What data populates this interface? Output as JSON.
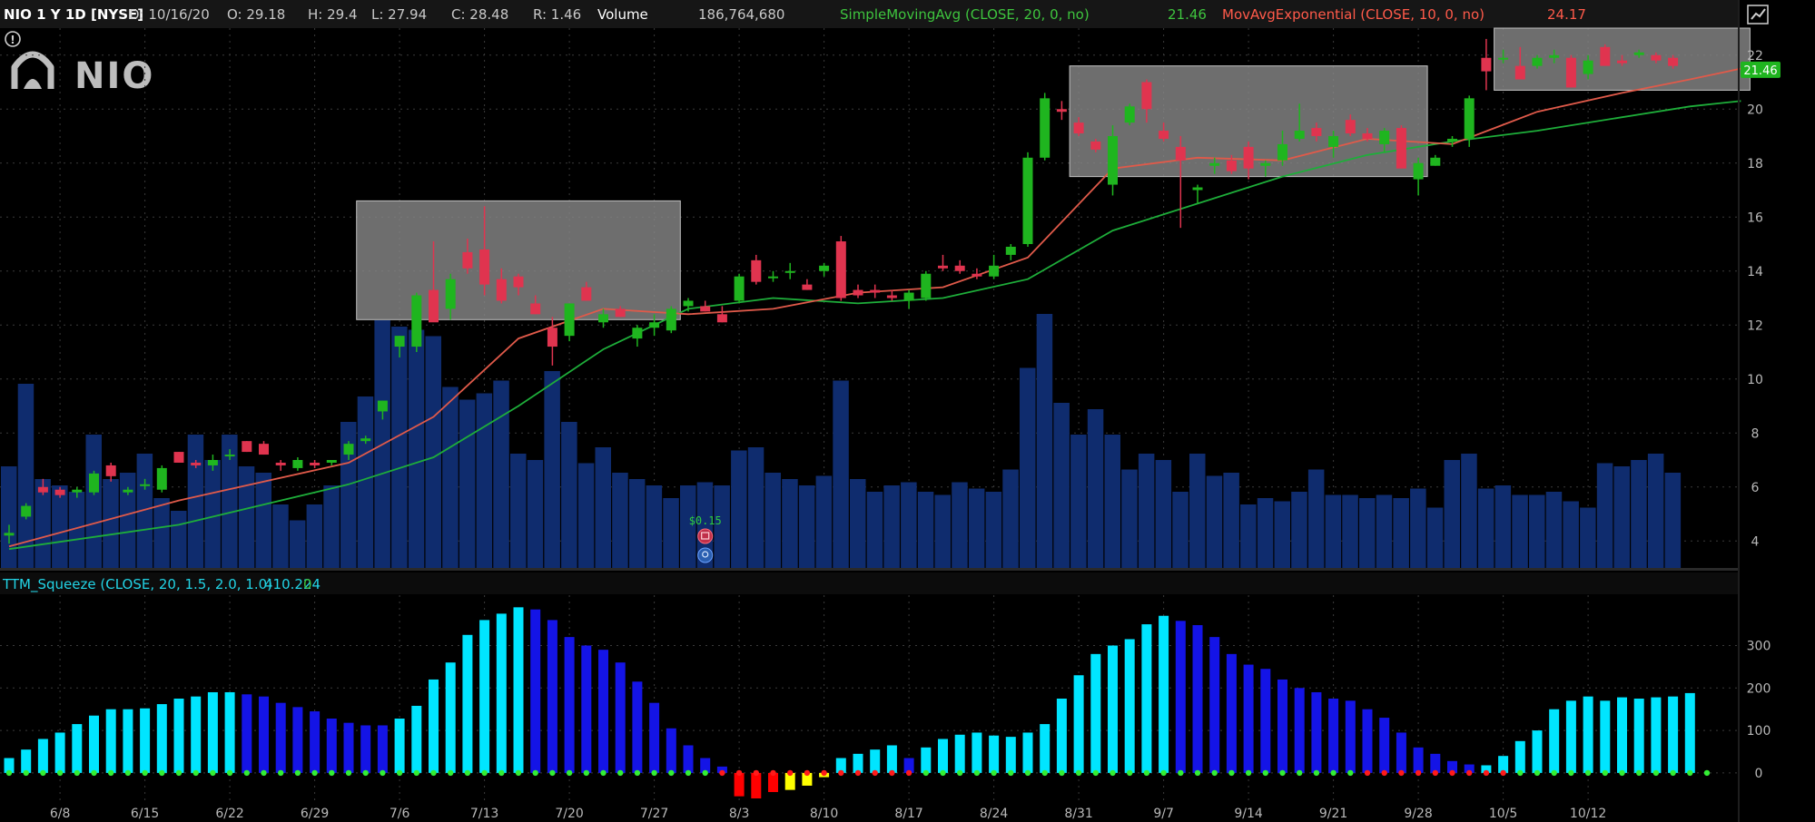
{
  "header": {
    "title": "NIO 1 Y 1D [NYSE]",
    "date": "D: 10/16/20",
    "open": "O: 29.18",
    "high": "H: 29.4",
    "low": "L: 27.94",
    "close": "C: 28.48",
    "range": "R: 1.46",
    "volume_label": "Volume",
    "volume_value": "186,764,680",
    "sma_label": "SimpleMovingAvg (CLOSE, 20, 0, no)",
    "sma_value": "21.46",
    "ema_label": "MovAvgExponential (CLOSE, 10, 0, no)",
    "ema_value": "24.17"
  },
  "logo": {
    "text": "NIO",
    "alert_glyph": "!"
  },
  "lower_header": {
    "label": "TTM_Squeeze (CLOSE, 20, 1.5, 2.0, 1.0)",
    "value": "410.224",
    "extra": "0"
  },
  "colors": {
    "up": "#1fb51f",
    "down": "#e0344f",
    "volume": "#0f2c6e",
    "sma": "#1eae3a",
    "ema": "#e05a4a",
    "box": "#8a8a8a",
    "squeeze_cyan": "#00e5ff",
    "squeeze_blue": "#1414e6",
    "squeeze_red": "#ff0000",
    "squeeze_yellow": "#ffff00",
    "header_sma": "#3ec43e",
    "header_ema": "#ff5a4a"
  },
  "events": {
    "dividend_label": "$0.15",
    "earnings_icon": "earnings-icon",
    "bulb_icon": "lightbulb-icon"
  },
  "chart_data": [
    {
      "type": "candlestick",
      "title": "NIO 1 Y 1D [NYSE]",
      "ylim": [
        3,
        23
      ],
      "yticks": [
        "4",
        "6",
        "8",
        "10",
        "12",
        "14",
        "16",
        "18",
        "20",
        "22"
      ],
      "x_ticks": [
        "6/8",
        "6/15",
        "6/22",
        "6/29",
        "7/6",
        "7/13",
        "7/20",
        "7/27",
        "8/3",
        "8/10",
        "8/17",
        "8/24",
        "8/31",
        "9/7",
        "9/14",
        "9/21",
        "9/28",
        "10/5",
        "10/12"
      ],
      "last_price_label": "21.46",
      "candles": [
        [
          4.2,
          4.6,
          3.9,
          4.3
        ],
        [
          4.9,
          5.4,
          4.8,
          5.3
        ],
        [
          6.0,
          6.3,
          5.7,
          5.8
        ],
        [
          5.9,
          6.0,
          5.6,
          5.7
        ],
        [
          5.8,
          6.0,
          5.6,
          5.9
        ],
        [
          5.8,
          6.6,
          5.7,
          6.5
        ],
        [
          6.8,
          6.9,
          6.2,
          6.4
        ],
        [
          5.8,
          6.0,
          5.7,
          5.9
        ],
        [
          6.1,
          6.3,
          5.9,
          6.1
        ],
        [
          5.9,
          6.8,
          5.8,
          6.7
        ],
        [
          7.3,
          7.3,
          6.9,
          6.9
        ],
        [
          6.9,
          7.0,
          6.7,
          6.8
        ],
        [
          6.8,
          7.2,
          6.6,
          7.0
        ],
        [
          7.2,
          7.4,
          7.0,
          7.2
        ],
        [
          7.7,
          7.7,
          7.3,
          7.3
        ],
        [
          7.6,
          7.7,
          7.2,
          7.2
        ],
        [
          6.9,
          7.0,
          6.6,
          6.8
        ],
        [
          6.7,
          7.1,
          6.6,
          7.0
        ],
        [
          6.9,
          7.0,
          6.7,
          6.8
        ],
        [
          6.9,
          7.0,
          6.8,
          7.0
        ],
        [
          7.2,
          7.7,
          7.0,
          7.6
        ],
        [
          7.7,
          7.9,
          7.6,
          7.8
        ],
        [
          8.8,
          9.2,
          8.5,
          9.2
        ],
        [
          11.2,
          11.6,
          10.8,
          11.6
        ],
        [
          11.2,
          13.2,
          11.0,
          13.1
        ],
        [
          13.3,
          15.1,
          12.2,
          12.1
        ],
        [
          12.6,
          13.9,
          12.2,
          13.7
        ],
        [
          14.7,
          15.2,
          13.9,
          14.1
        ],
        [
          14.8,
          16.4,
          13.1,
          13.5
        ],
        [
          13.7,
          14.1,
          12.8,
          12.9
        ],
        [
          13.8,
          13.9,
          13.1,
          13.4
        ],
        [
          12.8,
          13.1,
          12.4,
          12.4
        ],
        [
          11.9,
          12.3,
          10.5,
          11.2
        ],
        [
          11.6,
          12.8,
          11.4,
          12.8
        ],
        [
          13.4,
          13.6,
          12.9,
          12.9
        ],
        [
          12.1,
          12.6,
          11.9,
          12.4
        ],
        [
          12.6,
          12.7,
          12.3,
          12.3
        ],
        [
          11.5,
          12.0,
          11.2,
          11.9
        ],
        [
          11.9,
          12.4,
          11.6,
          12.1
        ],
        [
          11.8,
          12.7,
          11.7,
          12.6
        ],
        [
          12.7,
          13.0,
          12.5,
          12.9
        ],
        [
          12.7,
          12.9,
          12.5,
          12.5
        ],
        [
          12.4,
          12.7,
          12.1,
          12.1
        ],
        [
          12.9,
          13.9,
          12.8,
          13.8
        ],
        [
          14.4,
          14.6,
          13.5,
          13.6
        ],
        [
          13.8,
          14.0,
          13.6,
          13.8
        ],
        [
          14.0,
          14.3,
          13.7,
          14.0
        ],
        [
          13.5,
          13.7,
          13.3,
          13.3
        ],
        [
          14.0,
          14.3,
          13.8,
          14.2
        ],
        [
          15.1,
          15.3,
          12.9,
          13.0
        ],
        [
          13.3,
          13.5,
          13.0,
          13.1
        ],
        [
          13.3,
          13.5,
          13.0,
          13.2
        ],
        [
          13.1,
          13.3,
          12.9,
          13.0
        ],
        [
          12.9,
          13.3,
          12.6,
          13.2
        ],
        [
          13.0,
          14.0,
          12.9,
          13.9
        ],
        [
          14.2,
          14.6,
          14.0,
          14.1
        ],
        [
          14.2,
          14.4,
          13.9,
          14.0
        ],
        [
          13.9,
          14.1,
          13.7,
          13.8
        ],
        [
          13.8,
          14.6,
          13.7,
          14.2
        ],
        [
          14.6,
          15.0,
          14.4,
          14.9
        ],
        [
          15.0,
          18.4,
          14.9,
          18.2
        ],
        [
          18.2,
          20.6,
          18.1,
          20.4
        ],
        [
          20.0,
          20.3,
          19.6,
          19.9
        ],
        [
          19.5,
          19.7,
          19.0,
          19.1
        ],
        [
          18.8,
          18.9,
          18.4,
          18.5
        ],
        [
          17.2,
          19.4,
          16.8,
          19.0
        ],
        [
          19.5,
          20.2,
          19.4,
          20.1
        ],
        [
          21.0,
          21.1,
          19.5,
          20.0
        ],
        [
          19.2,
          19.5,
          18.8,
          18.9
        ],
        [
          18.6,
          19.0,
          15.6,
          18.1
        ],
        [
          17.0,
          17.2,
          16.5,
          17.1
        ],
        [
          17.9,
          18.2,
          17.6,
          18.0
        ],
        [
          18.1,
          18.3,
          17.6,
          17.7
        ],
        [
          18.6,
          18.8,
          17.4,
          17.8
        ],
        [
          17.9,
          18.1,
          17.5,
          18.0
        ],
        [
          18.1,
          19.2,
          17.9,
          18.7
        ],
        [
          18.9,
          20.2,
          18.8,
          19.2
        ],
        [
          19.3,
          19.5,
          18.8,
          19.0
        ],
        [
          18.6,
          19.2,
          18.2,
          19.0
        ],
        [
          19.6,
          19.8,
          19.0,
          19.1
        ],
        [
          19.1,
          19.3,
          18.8,
          18.9
        ],
        [
          18.7,
          19.3,
          18.4,
          19.2
        ],
        [
          19.3,
          19.4,
          17.9,
          17.8
        ],
        [
          17.4,
          18.2,
          16.8,
          18.0
        ],
        [
          17.9,
          18.3,
          17.9,
          18.2
        ],
        [
          18.8,
          19.0,
          18.6,
          18.9
        ],
        [
          18.9,
          20.5,
          18.6,
          20.4
        ],
        [
          21.9,
          22.6,
          20.7,
          21.4
        ],
        [
          21.9,
          22.2,
          21.7,
          21.9
        ],
        [
          21.6,
          22.3,
          21.2,
          21.1
        ],
        [
          21.6,
          22.0,
          21.5,
          21.9
        ],
        [
          21.9,
          22.2,
          21.7,
          22.0
        ],
        [
          21.9,
          22.0,
          21.0,
          20.8
        ],
        [
          21.3,
          22.0,
          21.1,
          21.8
        ],
        [
          22.3,
          22.4,
          21.7,
          21.6
        ],
        [
          21.8,
          22.0,
          21.6,
          21.7
        ],
        [
          22.0,
          22.2,
          21.9,
          22.1
        ],
        [
          22.0,
          22.1,
          21.7,
          21.8
        ],
        [
          21.9,
          22.0,
          21.5,
          21.6
        ]
      ],
      "volume": [
        32,
        58,
        28,
        26,
        24,
        42,
        28,
        30,
        36,
        22,
        18,
        42,
        34,
        42,
        32,
        30,
        20,
        15,
        20,
        26,
        46,
        54,
        78,
        76,
        75,
        73,
        57,
        53,
        55,
        59,
        36,
        34,
        62,
        46,
        33,
        38,
        30,
        28,
        26,
        22,
        26,
        27,
        26,
        37,
        38,
        30,
        28,
        26,
        29,
        59,
        28,
        24,
        26,
        27,
        24,
        23,
        27,
        25,
        24,
        31,
        63,
        80,
        52,
        42,
        50,
        42,
        31,
        36,
        34,
        24,
        36,
        29,
        30,
        20,
        22,
        21,
        24,
        31,
        23,
        23,
        22,
        23,
        22,
        25,
        19,
        34,
        36,
        25,
        26,
        23,
        23,
        24,
        21,
        19,
        33,
        32,
        34,
        36,
        30,
        24,
        18,
        19,
        20,
        20,
        18,
        20
      ],
      "sma_20": [
        [
          0,
          3.7
        ],
        [
          10,
          4.6
        ],
        [
          20,
          6.1
        ],
        [
          25,
          7.1
        ],
        [
          30,
          9.0
        ],
        [
          35,
          11.1
        ],
        [
          40,
          12.6
        ],
        [
          45,
          13.0
        ],
        [
          50,
          12.8
        ],
        [
          55,
          13.0
        ],
        [
          60,
          13.7
        ],
        [
          65,
          15.5
        ],
        [
          70,
          16.5
        ],
        [
          75,
          17.5
        ],
        [
          80,
          18.3
        ],
        [
          85,
          18.8
        ],
        [
          90,
          19.2
        ],
        [
          95,
          19.7
        ],
        [
          99,
          20.1
        ],
        [
          102,
          20.3
        ]
      ],
      "ema_10": [
        [
          0,
          3.8
        ],
        [
          10,
          5.5
        ],
        [
          20,
          6.9
        ],
        [
          25,
          8.6
        ],
        [
          30,
          11.5
        ],
        [
          35,
          12.6
        ],
        [
          40,
          12.4
        ],
        [
          45,
          12.6
        ],
        [
          50,
          13.2
        ],
        [
          55,
          13.4
        ],
        [
          60,
          14.5
        ],
        [
          65,
          17.8
        ],
        [
          70,
          18.2
        ],
        [
          75,
          18.1
        ],
        [
          80,
          18.9
        ],
        [
          85,
          18.7
        ],
        [
          90,
          19.9
        ],
        [
          95,
          20.6
        ],
        [
          99,
          21.1
        ],
        [
          102,
          21.5
        ]
      ],
      "boxes": [
        {
          "x0": 21,
          "x1": 39,
          "y0": 12.2,
          "y1": 16.6
        },
        {
          "x0": 63,
          "x1": 83,
          "y0": 17.5,
          "y1": 21.6
        },
        {
          "x0": 88,
          "x1": 102,
          "y0": 20.7,
          "y1": 23
        }
      ]
    },
    {
      "type": "bar",
      "title": "TTM_Squeeze (CLOSE, 20, 1.5, 2.0, 1.0)",
      "ylim": [
        -60,
        410
      ],
      "yticks": [
        "0",
        "100",
        "200",
        "300"
      ],
      "values": [
        35,
        55,
        80,
        95,
        115,
        135,
        150,
        150,
        152,
        162,
        175,
        180,
        190,
        190,
        185,
        180,
        165,
        155,
        145,
        128,
        118,
        112,
        112,
        128,
        158,
        220,
        260,
        325,
        360,
        375,
        390,
        385,
        360,
        320,
        300,
        290,
        260,
        215,
        165,
        105,
        65,
        35,
        15,
        -55,
        -60,
        -45,
        -40,
        -30,
        -10,
        35,
        45,
        55,
        65,
        35,
        60,
        80,
        90,
        95,
        88,
        85,
        95,
        115,
        175,
        230,
        280,
        300,
        315,
        350,
        370,
        358,
        348,
        320,
        280,
        255,
        245,
        220,
        200,
        190,
        175,
        170,
        150,
        130,
        95,
        60,
        45,
        28,
        20,
        18,
        40,
        75,
        100,
        150,
        170,
        180,
        170,
        178,
        175,
        178,
        180,
        188
      ],
      "colors": [
        "cyan",
        "cyan",
        "cyan",
        "cyan",
        "cyan",
        "cyan",
        "cyan",
        "cyan",
        "cyan",
        "cyan",
        "cyan",
        "cyan",
        "cyan",
        "cyan",
        "blue",
        "blue",
        "blue",
        "blue",
        "blue",
        "blue",
        "blue",
        "blue",
        "blue",
        "cyan",
        "cyan",
        "cyan",
        "cyan",
        "cyan",
        "cyan",
        "cyan",
        "cyan",
        "blue",
        "blue",
        "blue",
        "blue",
        "blue",
        "blue",
        "blue",
        "blue",
        "blue",
        "blue",
        "blue",
        "blue",
        "red",
        "red",
        "red",
        "yellow",
        "yellow",
        "yellow",
        "cyan",
        "cyan",
        "cyan",
        "cyan",
        "blue",
        "cyan",
        "cyan",
        "cyan",
        "cyan",
        "cyan",
        "cyan",
        "cyan",
        "cyan",
        "cyan",
        "cyan",
        "cyan",
        "cyan",
        "cyan",
        "cyan",
        "cyan",
        "blue",
        "blue",
        "blue",
        "blue",
        "blue",
        "blue",
        "blue",
        "blue",
        "blue",
        "blue",
        "blue",
        "blue",
        "blue",
        "blue",
        "blue",
        "blue",
        "blue",
        "blue",
        "cyan",
        "cyan",
        "cyan",
        "cyan",
        "cyan",
        "cyan",
        "cyan",
        "cyan",
        "cyan",
        "cyan",
        "cyan",
        "cyan"
      ],
      "dots": [
        "green",
        "green",
        "green",
        "green",
        "green",
        "green",
        "green",
        "green",
        "green",
        "green",
        "green",
        "green",
        "green",
        "green",
        "green",
        "green",
        "green",
        "green",
        "green",
        "green",
        "green",
        "green",
        "green",
        "green",
        "green",
        "green",
        "green",
        "green",
        "green",
        "green",
        "green",
        "green",
        "green",
        "green",
        "green",
        "green",
        "green",
        "green",
        "green",
        "green",
        "green",
        "green",
        "red",
        "red",
        "red",
        "red",
        "red",
        "red",
        "red",
        "red",
        "red",
        "red",
        "red",
        "red",
        "green",
        "green",
        "green",
        "green",
        "green",
        "green",
        "green",
        "green",
        "green",
        "green",
        "green",
        "green",
        "green",
        "green",
        "green",
        "green",
        "green",
        "green",
        "green",
        "green",
        "green",
        "green",
        "green",
        "green",
        "green",
        "green",
        "red",
        "red",
        "red",
        "red",
        "red",
        "red",
        "red",
        "red",
        "red",
        "green",
        "green",
        "green",
        "green",
        "green",
        "green",
        "green",
        "green",
        "green",
        "green",
        "green",
        "green"
      ]
    }
  ]
}
